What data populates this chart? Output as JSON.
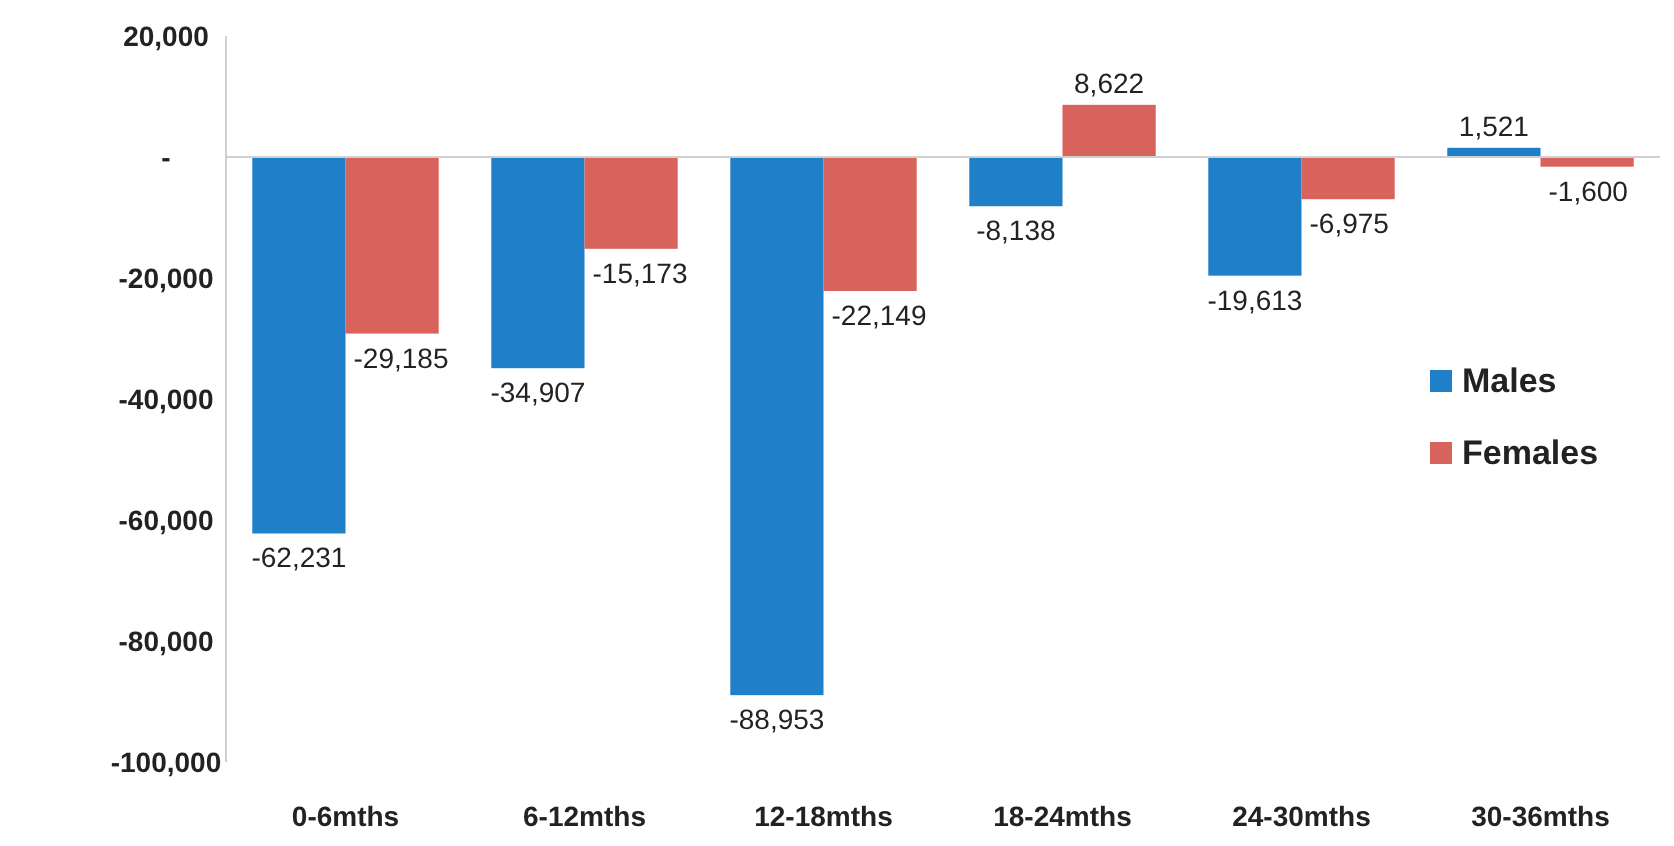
{
  "chart_data": {
    "type": "bar",
    "categories": [
      "0-6mths",
      "6-12mths",
      "12-18mths",
      "18-24mths",
      "24-30mths",
      "30-36mths"
    ],
    "series": [
      {
        "name": "Males",
        "color": "#1f7fc9",
        "values": [
          -62231,
          -34907,
          -88953,
          -8138,
          -19613,
          1521
        ],
        "value_labels": [
          "-62,231",
          "-34,907",
          "-88,953",
          "-8,138",
          "-19,613",
          "1,521"
        ]
      },
      {
        "name": "Females",
        "color": "#d8625c",
        "values": [
          -29185,
          -15173,
          -22149,
          8622,
          -6975,
          -1600
        ],
        "value_labels": [
          "-29,185",
          "-15,173",
          "-22,149",
          "8,622",
          "-6,975",
          "-1,600"
        ]
      }
    ],
    "ylim": [
      -100000,
      20000
    ],
    "yticks": [
      {
        "value": 20000,
        "label": "20,000"
      },
      {
        "value": 0,
        "label": "-"
      },
      {
        "value": -20000,
        "label": "-20,000"
      },
      {
        "value": -40000,
        "label": "-40,000"
      },
      {
        "value": -60000,
        "label": "-60,000"
      },
      {
        "value": -80000,
        "label": "-80,000"
      },
      {
        "value": -100000,
        "label": "-100,000"
      }
    ],
    "legend": "right"
  }
}
